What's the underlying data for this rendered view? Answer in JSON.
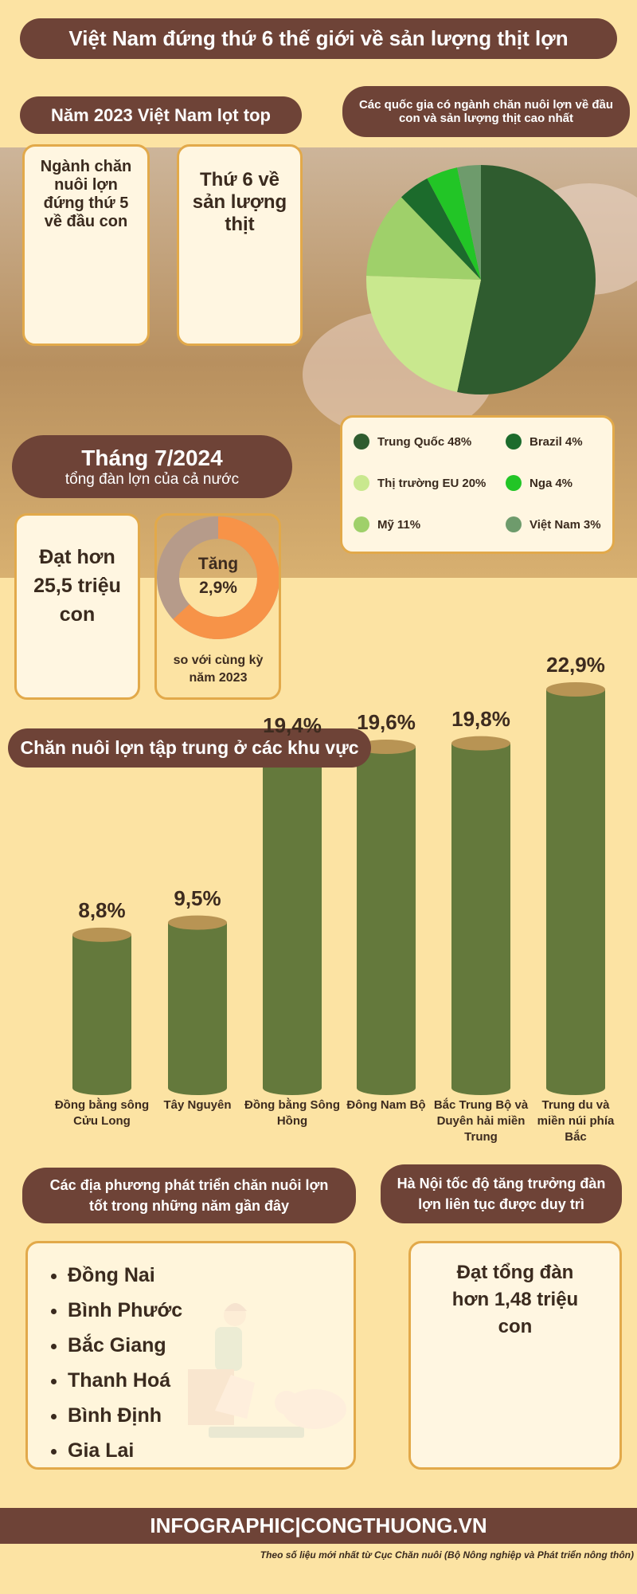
{
  "header": {
    "title": "Việt Nam đứng thứ 6 thế giới về sản lượng thịt lợn"
  },
  "top": {
    "badge": "Năm 2023 Việt Nam lọt top",
    "rank_heads": "Ngành chăn nuôi lợn đứng thứ 5 về đầu con",
    "rank_meat": "Thứ 6 về sản lượng thịt"
  },
  "herd": {
    "badge_title": "Tháng 7/2024",
    "badge_subtitle": "tổng đàn lợn của cả nước",
    "total": "Đạt hơn 25,5 triệu con",
    "growth": "Tăng 2,9%",
    "growth_note": "so với cùng kỳ năm 2023"
  },
  "chart_data": [
    {
      "type": "pie",
      "title": "Các quốc gia có ngành chăn nuôi lợn về đầu con và sản lượng thịt cao nhất",
      "categories": [
        "Trung Quốc",
        "Thị trường EU",
        "Mỹ",
        "Brazil",
        "Nga",
        "Việt Nam"
      ],
      "values": [
        48,
        20,
        11,
        4,
        4,
        3
      ],
      "value_labels": [
        "48%",
        "20%",
        "11%",
        "4%",
        "4%",
        "3%"
      ],
      "colors": [
        "#2f5c2f",
        "#c9e88e",
        "#9fd06a",
        "#1c6b2c",
        "#22c526",
        "#6e9b6c"
      ]
    },
    {
      "type": "bar",
      "title": "Chăn nuôi lợn tập trung ở các khu vực",
      "categories": [
        "Đồng bằng sông Cửu Long",
        "Tây Nguyên",
        "Đồng bằng Sông Hồng",
        "Đông Nam Bộ",
        "Bắc Trung Bộ và Duyên hải miền Trung",
        "Trung du và miền núi phía Bắc"
      ],
      "values": [
        8.8,
        9.5,
        19.4,
        19.6,
        19.8,
        22.9
      ],
      "value_labels": [
        "8,8%",
        "9,5%",
        "19,4%",
        "19,6%",
        "19,8%",
        "22,9%"
      ],
      "color": "#64793c"
    }
  ],
  "localities": {
    "title": "Các địa phương phát triển chăn nuôi lợn tốt trong những năm gần đây",
    "items": [
      "Đồng Nai",
      "Bình Phước",
      "Bắc Giang",
      "Thanh Hoá",
      "Bình Định",
      "Gia Lai"
    ]
  },
  "hanoi": {
    "title": "Hà Nội tốc độ tăng trưởng đàn lợn liên tục được duy trì",
    "text": "Đạt tổng đàn hơn 1,48 triệu con"
  },
  "footer": {
    "brand": "INFOGRAPHIC|CONGTHUONG.VN",
    "source": "Theo số liệu mới nhất từ Cục Chăn nuôi (Bộ Nông nghiệp và Phát triển nông thôn)"
  }
}
